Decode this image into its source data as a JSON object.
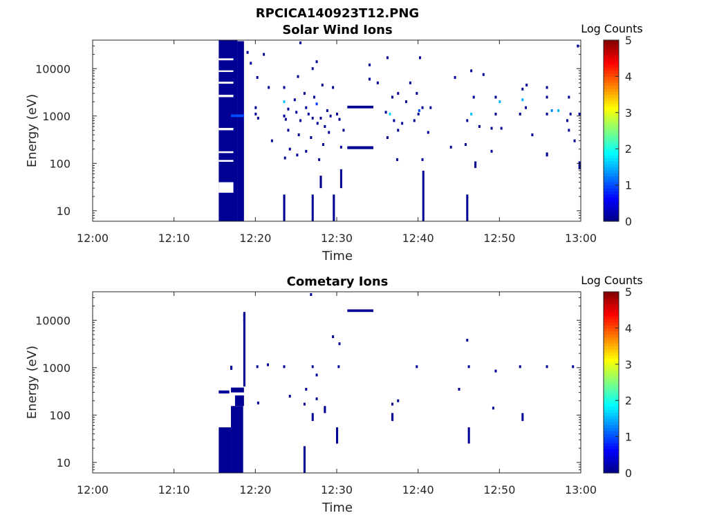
{
  "figure": {
    "title": "RPCICA140923T12.PNG",
    "background": "#ffffff"
  },
  "chart_data": [
    {
      "type": "heatmap",
      "title": "Solar Wind Ions",
      "xlabel": "Time",
      "ylabel": "Energy (eV)",
      "x_ticks": [
        "12:00",
        "12:10",
        "12:20",
        "12:30",
        "12:40",
        "12:50",
        "13:00"
      ],
      "x_range": [
        "12:00",
        "13:00"
      ],
      "y_scale": "log",
      "y_ticks": [
        10,
        100,
        1000,
        10000
      ],
      "y_range": [
        6,
        40000
      ],
      "colorbar": {
        "label": "Log Counts",
        "range": [
          0,
          5
        ],
        "ticks": [
          0,
          1,
          2,
          3,
          4,
          5
        ],
        "colormap": "jet"
      },
      "blocks": [
        {
          "t0": 15.5,
          "t1": 17.8,
          "e0": 6,
          "e1": 40000,
          "v": 0.1
        },
        {
          "t0": 17.8,
          "t1": 18.6,
          "e0": 6,
          "e1": 38000,
          "v": 0.1
        },
        {
          "t0": 17.0,
          "t1": 18.6,
          "e0": 950,
          "e1": 1080,
          "v": 1.0
        },
        {
          "t0": 31.3,
          "t1": 34.5,
          "e0": 1450,
          "e1": 1650,
          "v": 0.1
        },
        {
          "t0": 31.3,
          "t1": 34.5,
          "e0": 200,
          "e1": 230,
          "v": 0.1
        }
      ],
      "gaps": [
        {
          "t0": 15.5,
          "t1": 17.3,
          "e0": 15000,
          "e1": 16500
        },
        {
          "t0": 15.5,
          "t1": 17.3,
          "e0": 8500,
          "e1": 9200
        },
        {
          "t0": 15.5,
          "t1": 17.3,
          "e0": 4800,
          "e1": 5300
        },
        {
          "t0": 15.5,
          "t1": 17.3,
          "e0": 2500,
          "e1": 2800
        },
        {
          "t0": 15.5,
          "t1": 17.3,
          "e0": 500,
          "e1": 560
        },
        {
          "t0": 15.5,
          "t1": 17.3,
          "e0": 165,
          "e1": 180
        },
        {
          "t0": 15.5,
          "t1": 17.3,
          "e0": 108,
          "e1": 118
        },
        {
          "t0": 15.5,
          "t1": 17.3,
          "e0": 24,
          "e1": 40
        }
      ],
      "columns": [
        {
          "t": 23.5,
          "e0": 6,
          "e1": 22
        },
        {
          "t": 27.0,
          "e0": 6,
          "e1": 22
        },
        {
          "t": 28.0,
          "e0": 30,
          "e1": 55
        },
        {
          "t": 29.6,
          "e0": 6,
          "e1": 22
        },
        {
          "t": 30.5,
          "e0": 30,
          "e1": 75
        },
        {
          "t": 40.6,
          "e0": 6,
          "e1": 70
        },
        {
          "t": 46.0,
          "e0": 6,
          "e1": 22
        },
        {
          "t": 47.0,
          "e0": 80,
          "e1": 110
        },
        {
          "t": 55.8,
          "e0": 140,
          "e1": 170
        },
        {
          "t": 59.8,
          "e0": 75,
          "e1": 110
        }
      ],
      "points": [
        {
          "t": 19.0,
          "e": 22000,
          "v": 0.1
        },
        {
          "t": 21.0,
          "e": 20000,
          "v": 0.1
        },
        {
          "t": 25.5,
          "e": 35000,
          "v": 0.1
        },
        {
          "t": 19.4,
          "e": 13000,
          "v": 0.1
        },
        {
          "t": 20.2,
          "e": 6500,
          "v": 0.1
        },
        {
          "t": 21.6,
          "e": 4000,
          "v": 0.1
        },
        {
          "t": 23.5,
          "e": 4000,
          "v": 0.1
        },
        {
          "t": 25.2,
          "e": 6800,
          "v": 0.1
        },
        {
          "t": 27.0,
          "e": 10000,
          "v": 0.1
        },
        {
          "t": 27.5,
          "e": 14000,
          "v": 0.1
        },
        {
          "t": 28.2,
          "e": 4500,
          "v": 0.1
        },
        {
          "t": 29.5,
          "e": 4000,
          "v": 0.1
        },
        {
          "t": 26.0,
          "e": 3000,
          "v": 0.1
        },
        {
          "t": 27.2,
          "e": 2500,
          "v": 0.1
        },
        {
          "t": 24.8,
          "e": 2200,
          "v": 0.1
        },
        {
          "t": 20.0,
          "e": 1100,
          "v": 0.1
        },
        {
          "t": 20.3,
          "e": 900,
          "v": 0.1
        },
        {
          "t": 23.5,
          "e": 1000,
          "v": 0.1
        },
        {
          "t": 23.7,
          "e": 850,
          "v": 0.1
        },
        {
          "t": 25.0,
          "e": 1200,
          "v": 0.1
        },
        {
          "t": 26.5,
          "e": 1100,
          "v": 0.1
        },
        {
          "t": 27.0,
          "e": 900,
          "v": 0.1
        },
        {
          "t": 27.6,
          "e": 700,
          "v": 0.1
        },
        {
          "t": 28.5,
          "e": 600,
          "v": 0.1
        },
        {
          "t": 30.0,
          "e": 1100,
          "v": 0.1
        },
        {
          "t": 30.3,
          "e": 850,
          "v": 0.1
        },
        {
          "t": 24.0,
          "e": 500,
          "v": 0.1
        },
        {
          "t": 25.3,
          "e": 400,
          "v": 0.1
        },
        {
          "t": 26.8,
          "e": 350,
          "v": 0.1
        },
        {
          "t": 29.0,
          "e": 450,
          "v": 0.1
        },
        {
          "t": 30.8,
          "e": 500,
          "v": 0.1
        },
        {
          "t": 22.0,
          "e": 300,
          "v": 0.1
        },
        {
          "t": 24.2,
          "e": 200,
          "v": 0.1
        },
        {
          "t": 26.2,
          "e": 180,
          "v": 0.1
        },
        {
          "t": 28.3,
          "e": 250,
          "v": 0.1
        },
        {
          "t": 30.5,
          "e": 220,
          "v": 0.1
        },
        {
          "t": 23.6,
          "e": 130,
          "v": 0.1
        },
        {
          "t": 25.1,
          "e": 150,
          "v": 0.1
        },
        {
          "t": 27.8,
          "e": 120,
          "v": 0.1
        },
        {
          "t": 23.5,
          "e": 2000,
          "v": 1.6
        },
        {
          "t": 27.5,
          "e": 1800,
          "v": 0.9
        },
        {
          "t": 36.5,
          "e": 1100,
          "v": 1.7
        },
        {
          "t": 36.0,
          "e": 1200,
          "v": 0.1
        },
        {
          "t": 37.0,
          "e": 800,
          "v": 0.1
        },
        {
          "t": 38.0,
          "e": 700,
          "v": 0.1
        },
        {
          "t": 36.8,
          "e": 2500,
          "v": 0.1
        },
        {
          "t": 37.5,
          "e": 3000,
          "v": 0.1
        },
        {
          "t": 38.5,
          "e": 2000,
          "v": 0.1
        },
        {
          "t": 35.0,
          "e": 5000,
          "v": 0.1
        },
        {
          "t": 36.2,
          "e": 17000,
          "v": 0.1
        },
        {
          "t": 34.0,
          "e": 12000,
          "v": 0.1
        },
        {
          "t": 34.0,
          "e": 6000,
          "v": 0.1
        },
        {
          "t": 39.0,
          "e": 5000,
          "v": 0.1
        },
        {
          "t": 39.8,
          "e": 3000,
          "v": 0.1
        },
        {
          "t": 40.0,
          "e": 1100,
          "v": 0.1
        },
        {
          "t": 40.5,
          "e": 1500,
          "v": 0.1
        },
        {
          "t": 41.5,
          "e": 1500,
          "v": 0.1
        },
        {
          "t": 39.5,
          "e": 800,
          "v": 0.1
        },
        {
          "t": 41.2,
          "e": 450,
          "v": 0.1
        },
        {
          "t": 40.2,
          "e": 17000,
          "v": 0.1
        },
        {
          "t": 37.5,
          "e": 500,
          "v": 0.1
        },
        {
          "t": 36.2,
          "e": 350,
          "v": 0.1
        },
        {
          "t": 37.4,
          "e": 120,
          "v": 0.1
        },
        {
          "t": 40.5,
          "e": 120,
          "v": 0.1
        },
        {
          "t": 44.5,
          "e": 6500,
          "v": 0.1
        },
        {
          "t": 46.5,
          "e": 1100,
          "v": 1.6
        },
        {
          "t": 46.0,
          "e": 800,
          "v": 0.1
        },
        {
          "t": 47.5,
          "e": 600,
          "v": 0.1
        },
        {
          "t": 46.8,
          "e": 2500,
          "v": 0.1
        },
        {
          "t": 46.5,
          "e": 9000,
          "v": 0.1
        },
        {
          "t": 48.0,
          "e": 7500,
          "v": 0.1
        },
        {
          "t": 44.0,
          "e": 220,
          "v": 0.1
        },
        {
          "t": 45.8,
          "e": 250,
          "v": 0.1
        },
        {
          "t": 49.5,
          "e": 1100,
          "v": 0.1
        },
        {
          "t": 49.5,
          "e": 2500,
          "v": 0.1
        },
        {
          "t": 50.0,
          "e": 2000,
          "v": 1.5
        },
        {
          "t": 49.0,
          "e": 550,
          "v": 0.1
        },
        {
          "t": 50.2,
          "e": 550,
          "v": 0.1
        },
        {
          "t": 49.0,
          "e": 180,
          "v": 0.1
        },
        {
          "t": 52.5,
          "e": 1100,
          "v": 0.1
        },
        {
          "t": 52.8,
          "e": 2200,
          "v": 1.5
        },
        {
          "t": 53.2,
          "e": 1500,
          "v": 0.1
        },
        {
          "t": 52.8,
          "e": 3700,
          "v": 0.1
        },
        {
          "t": 53.3,
          "e": 4500,
          "v": 0.1
        },
        {
          "t": 54.0,
          "e": 400,
          "v": 0.1
        },
        {
          "t": 55.8,
          "e": 1100,
          "v": 0.1
        },
        {
          "t": 56.4,
          "e": 1300,
          "v": 1.3
        },
        {
          "t": 57.2,
          "e": 1300,
          "v": 1.5
        },
        {
          "t": 55.8,
          "e": 4000,
          "v": 0.1
        },
        {
          "t": 55.8,
          "e": 2500,
          "v": 0.1
        },
        {
          "t": 58.7,
          "e": 1100,
          "v": 0.1
        },
        {
          "t": 58.5,
          "e": 2500,
          "v": 0.1
        },
        {
          "t": 58.3,
          "e": 800,
          "v": 0.1
        },
        {
          "t": 58.5,
          "e": 500,
          "v": 0.1
        },
        {
          "t": 59.2,
          "e": 300,
          "v": 0.1
        },
        {
          "t": 59.6,
          "e": 30000,
          "v": 0.1
        },
        {
          "t": 59.8,
          "e": 1100,
          "v": 0.1
        },
        {
          "t": 29.2,
          "e": 1000,
          "v": 0.1
        },
        {
          "t": 28.8,
          "e": 1300,
          "v": 0.1
        },
        {
          "t": 26.2,
          "e": 1500,
          "v": 0.1
        },
        {
          "t": 25.5,
          "e": 800,
          "v": 0.1
        },
        {
          "t": 28.0,
          "e": 900,
          "v": 0.1
        },
        {
          "t": 40.1,
          "e": 1300,
          "v": 1.0
        },
        {
          "t": 24.0,
          "e": 1400,
          "v": 0.1
        },
        {
          "t": 20.0,
          "e": 1500,
          "v": 0.1
        }
      ]
    },
    {
      "type": "heatmap",
      "title": "Cometary Ions",
      "xlabel": "Time",
      "ylabel": "Energy (eV)",
      "x_ticks": [
        "12:00",
        "12:10",
        "12:20",
        "12:30",
        "12:40",
        "12:50",
        "13:00"
      ],
      "x_range": [
        "12:00",
        "13:00"
      ],
      "y_scale": "log",
      "y_ticks": [
        10,
        100,
        1000,
        10000
      ],
      "y_range": [
        6,
        40000
      ],
      "colorbar": {
        "label": "Log Counts",
        "range": [
          0,
          5
        ],
        "ticks": [
          0,
          1,
          2,
          3,
          4,
          5
        ],
        "colormap": "jet"
      },
      "blocks": [
        {
          "t0": 15.5,
          "t1": 17.0,
          "e0": 6,
          "e1": 55,
          "v": 0.1
        },
        {
          "t0": 17.0,
          "t1": 18.5,
          "e0": 6,
          "e1": 155,
          "v": 0.1
        },
        {
          "t0": 17.5,
          "t1": 18.6,
          "e0": 155,
          "e1": 260,
          "v": 0.1
        },
        {
          "t0": 15.5,
          "t1": 16.8,
          "e0": 285,
          "e1": 330,
          "v": 0.1
        },
        {
          "t0": 17.0,
          "t1": 18.6,
          "e0": 300,
          "e1": 380,
          "v": 0.1
        },
        {
          "t0": 31.3,
          "t1": 34.5,
          "e0": 15000,
          "e1": 17000,
          "v": 0.1
        }
      ],
      "gaps": [],
      "columns": [
        {
          "t": 18.6,
          "e0": 400,
          "e1": 15000
        },
        {
          "t": 17.0,
          "e0": 900,
          "e1": 1100
        },
        {
          "t": 26.0,
          "e0": 6,
          "e1": 22
        },
        {
          "t": 30.0,
          "e0": 25,
          "e1": 55
        },
        {
          "t": 46.2,
          "e0": 25,
          "e1": 55
        },
        {
          "t": 27.0,
          "e0": 75,
          "e1": 110
        },
        {
          "t": 28.5,
          "e0": 110,
          "e1": 155
        },
        {
          "t": 36.8,
          "e0": 75,
          "e1": 110
        },
        {
          "t": 52.8,
          "e0": 75,
          "e1": 110
        }
      ],
      "points": [
        {
          "t": 26.8,
          "e": 35000,
          "v": 0.1
        },
        {
          "t": 29.5,
          "e": 4500,
          "v": 0.1
        },
        {
          "t": 30.3,
          "e": 3200,
          "v": 0.1
        },
        {
          "t": 46.0,
          "e": 3800,
          "v": 0.1
        },
        {
          "t": 20.2,
          "e": 1050,
          "v": 0.1
        },
        {
          "t": 21.5,
          "e": 1150,
          "v": 0.1
        },
        {
          "t": 23.5,
          "e": 1050,
          "v": 0.1
        },
        {
          "t": 27.0,
          "e": 1050,
          "v": 0.1
        },
        {
          "t": 27.5,
          "e": 700,
          "v": 0.1
        },
        {
          "t": 30.2,
          "e": 1050,
          "v": 0.1
        },
        {
          "t": 39.8,
          "e": 1050,
          "v": 0.1
        },
        {
          "t": 46.2,
          "e": 1050,
          "v": 0.1
        },
        {
          "t": 49.5,
          "e": 850,
          "v": 0.1
        },
        {
          "t": 52.5,
          "e": 1050,
          "v": 0.1
        },
        {
          "t": 55.8,
          "e": 1050,
          "v": 0.1
        },
        {
          "t": 59.0,
          "e": 1050,
          "v": 0.1
        },
        {
          "t": 26.2,
          "e": 350,
          "v": 0.1
        },
        {
          "t": 24.2,
          "e": 250,
          "v": 0.1
        },
        {
          "t": 26.0,
          "e": 170,
          "v": 0.1
        },
        {
          "t": 27.5,
          "e": 220,
          "v": 0.1
        },
        {
          "t": 37.5,
          "e": 200,
          "v": 0.1
        },
        {
          "t": 45.0,
          "e": 350,
          "v": 0.1
        },
        {
          "t": 49.2,
          "e": 140,
          "v": 0.1
        },
        {
          "t": 20.3,
          "e": 180,
          "v": 0.1
        },
        {
          "t": 18.6,
          "e": 13000,
          "v": 0.1
        },
        {
          "t": 18.6,
          "e": 10000,
          "v": 0.1
        },
        {
          "t": 36.8,
          "e": 170,
          "v": 0.1
        }
      ]
    }
  ]
}
